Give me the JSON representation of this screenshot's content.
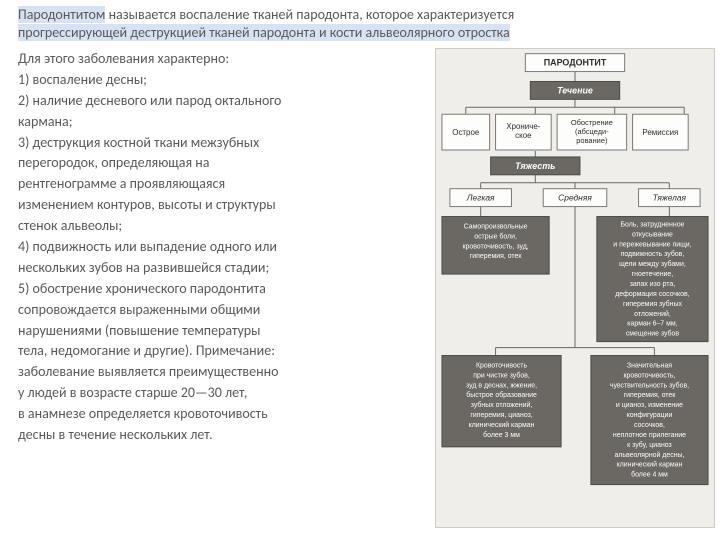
{
  "intro": {
    "line1a": "Пародонтитом",
    "line1b": " называется воспаление тканей пародонта, которое характеризуется ",
    "line2": "прогрессирующей деструкцией тканей пародонта и кости альвеолярного отростка"
  },
  "body": {
    "p0": "    Для этого заболевания характерно:",
    "p1": "1) воспаление десны;",
    "p2": "2) наличие десневого или парод октального",
    "p3": "кармана;",
    "p4": "3) деструкция костной ткани межзубных",
    "p5": "перегородок, определяющая на",
    "p6": " рентгенограмме а проявляющаяся",
    "p7": "изменением контуров, высоты и структуры",
    "p8": " стенок альвеолы;",
    "p9": "4) подвижность или выпадение одного или",
    "p10": "нескольких зубов на развившейся стадии;",
    "p11": "5) обострение хронического пародонтита",
    "p12": "сопровождается выраженными общими",
    "p13": "нарушениями (повышение температуры",
    "p14": "тела, недомогание и другие). Примечание:",
    "p15": " заболевание выявляется преимущественно",
    "p16": " у людей в возрасте старше 20—30 лет,",
    "p17": "в анамнезе определяется кровоточивость",
    "p18": " десны в течение нескольких лет."
  },
  "diagram": {
    "bg": "#efeeea",
    "root": {
      "label": "ПАРОДОНТИТ"
    },
    "course": {
      "label": "Течение"
    },
    "course_items": [
      "Острое",
      "Хрониче-\nское",
      "Обострение\n(абсцеди-\nрование)",
      "Ремиссия"
    ],
    "severity": {
      "label": "Тяжесть"
    },
    "severity_items": [
      "Легкая",
      "Средняя",
      "Тяжелая"
    ],
    "light_mid_left": "Самопроизвольные\nострые боли,\nкровоточивость, зуд,\nгиперемия, отек",
    "light_mid_right": "Боль, затрудненное\nоткусывание\nи пережевывание пищи,\nподвижность зубов,\nщели между зубами,\nгноетечение,\nзапах изо рта,\nдеформация сосочков,\nгиперемия зубных\nотложений,\nкарман 6–7 мм,\nсмещение зубов",
    "light_bot_left": "Кровоточивость\nпри чистке зубов,\nзуд в деснах, жжение,\nбыстрое образование\nзубных отложений,\nгиперемия, цианоз,\nклинический карман\nболее 3 мм",
    "light_bot_right": "Значительная\nкровоточивость,\nчувствительность зубов,\nгиперемия, отек\nи цианоз, изменение\nконфигурации\nсосочков,\nнеплотное прилегание\nк зубу, цианоз\nальвеолярной десны,\nклинический карман\nболее 4 мм"
  },
  "colors": {
    "text": "#595959",
    "highlight": "#d7e3f4",
    "box_light": "#fdfdfb",
    "box_dark": "#6b6863",
    "line": "#6b675e"
  }
}
